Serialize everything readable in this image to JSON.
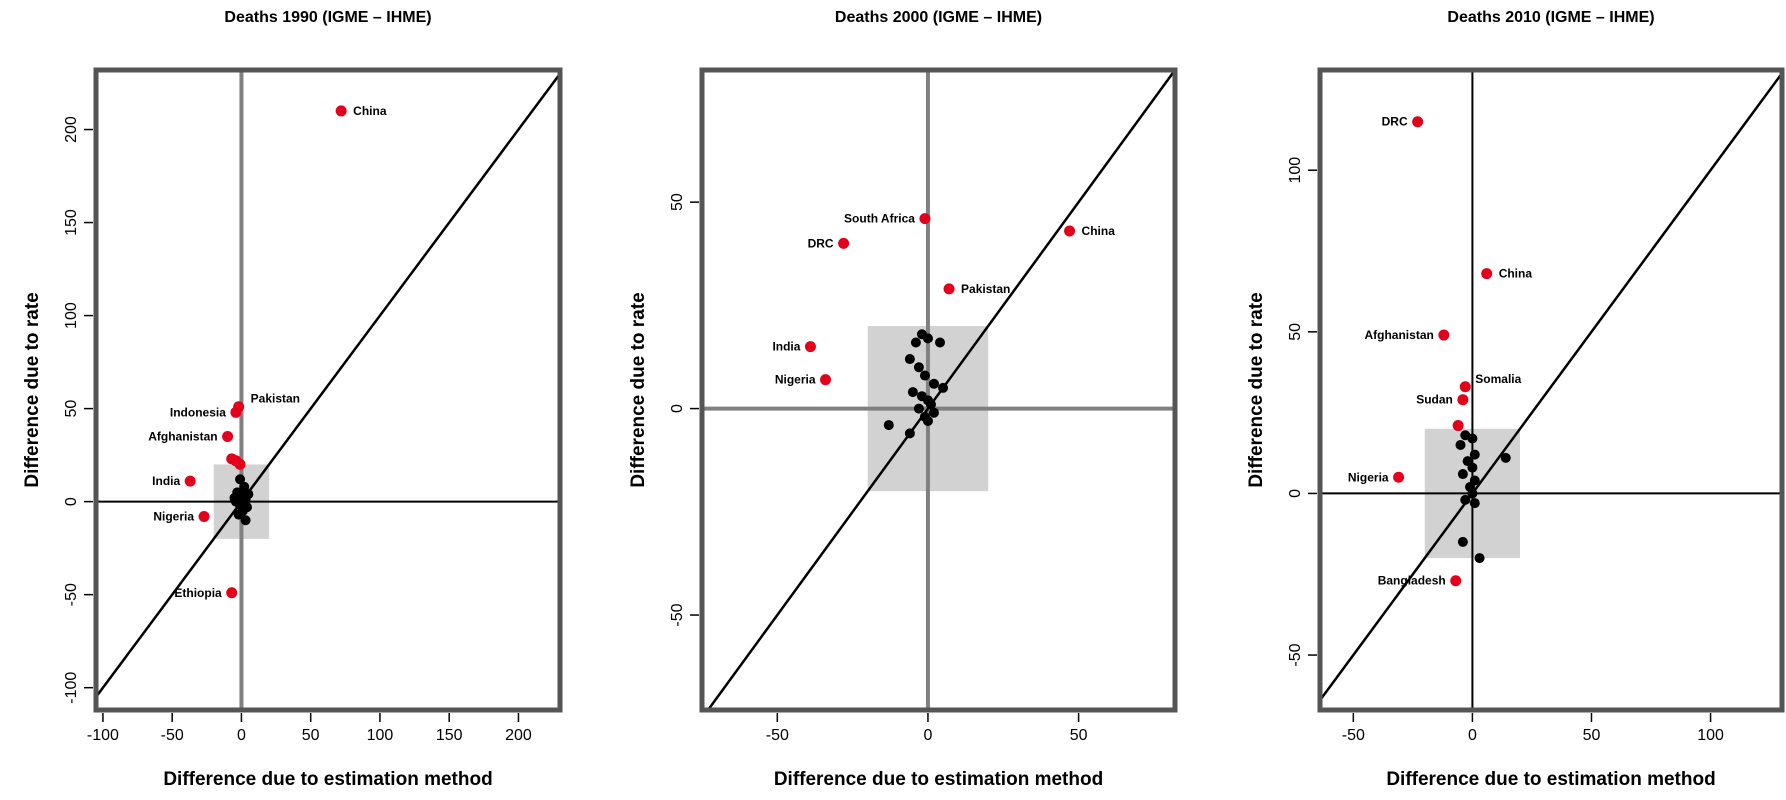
{
  "chart_data": [
    {
      "type": "scatter",
      "title": "Deaths 1990 (IGME – IHME)",
      "xlabel": "Difference due to estimation method",
      "ylabel": "Difference due to rate",
      "xlim": [
        -105,
        230
      ],
      "ylim": [
        -112,
        232
      ],
      "xticks": [
        -100,
        -50,
        0,
        50,
        100,
        150,
        200
      ],
      "yticks": [
        -100,
        -50,
        0,
        50,
        100,
        150,
        200
      ],
      "box": 20,
      "highlighted": [
        {
          "label": "China",
          "x": 72,
          "y": 210
        },
        {
          "label": "Pakistan",
          "x": -2,
          "y": 51
        },
        {
          "label": "Indonesia",
          "x": -4,
          "y": 48
        },
        {
          "label": "Afghanistan",
          "x": -10,
          "y": 35
        },
        {
          "label": "",
          "x": -7,
          "y": 23
        },
        {
          "label": "",
          "x": -4,
          "y": 22
        },
        {
          "label": "",
          "x": -1,
          "y": 20
        },
        {
          "label": "India",
          "x": -37,
          "y": 11
        },
        {
          "label": "Nigeria",
          "x": -27,
          "y": -8
        },
        {
          "label": "Ethiopia",
          "x": -7,
          "y": -49
        }
      ],
      "points": [
        {
          "x": -1,
          "y": 12
        },
        {
          "x": 2,
          "y": 8
        },
        {
          "x": -3,
          "y": 5
        },
        {
          "x": 1,
          "y": 3
        },
        {
          "x": -2,
          "y": 2
        },
        {
          "x": 3,
          "y": 1
        },
        {
          "x": -4,
          "y": 0
        },
        {
          "x": 0,
          "y": 0
        },
        {
          "x": 2,
          "y": -1
        },
        {
          "x": -1,
          "y": -2
        },
        {
          "x": 4,
          "y": -3
        },
        {
          "x": 1,
          "y": -5
        },
        {
          "x": -2,
          "y": -7
        },
        {
          "x": 3,
          "y": -10
        },
        {
          "x": 5,
          "y": 4
        },
        {
          "x": -5,
          "y": 2
        }
      ]
    },
    {
      "type": "scatter",
      "title": "Deaths 2000 (IGME – IHME)",
      "xlabel": "Difference due to estimation method",
      "ylabel": "Difference due to rate",
      "xlim": [
        -75,
        82
      ],
      "ylim": [
        -73,
        82
      ],
      "xticks": [
        -50,
        0,
        50
      ],
      "yticks": [
        -50,
        0,
        50
      ],
      "box": 20,
      "highlighted": [
        {
          "label": "South Africa",
          "x": -1,
          "y": 46
        },
        {
          "label": "DRC",
          "x": -28,
          "y": 40
        },
        {
          "label": "China",
          "x": 47,
          "y": 43
        },
        {
          "label": "Pakistan",
          "x": 7,
          "y": 29
        },
        {
          "label": "India",
          "x": -39,
          "y": 15
        },
        {
          "label": "Nigeria",
          "x": -34,
          "y": 7
        }
      ],
      "points": [
        {
          "x": -4,
          "y": 16
        },
        {
          "x": -2,
          "y": 18
        },
        {
          "x": 0,
          "y": 17
        },
        {
          "x": 4,
          "y": 16
        },
        {
          "x": -6,
          "y": 12
        },
        {
          "x": -3,
          "y": 10
        },
        {
          "x": -1,
          "y": 8
        },
        {
          "x": 2,
          "y": 6
        },
        {
          "x": 5,
          "y": 5
        },
        {
          "x": -5,
          "y": 4
        },
        {
          "x": -2,
          "y": 3
        },
        {
          "x": 0,
          "y": 2
        },
        {
          "x": 1,
          "y": 1
        },
        {
          "x": -3,
          "y": 0
        },
        {
          "x": 2,
          "y": -1
        },
        {
          "x": -1,
          "y": -2
        },
        {
          "x": -13,
          "y": -4
        },
        {
          "x": -6,
          "y": -6
        },
        {
          "x": 0,
          "y": -3
        }
      ]
    },
    {
      "type": "scatter",
      "title": "Deaths 2010 (IGME – IHME)",
      "xlabel": "Difference due to estimation method",
      "ylabel": "Difference due to rate",
      "xlim": [
        -64,
        130
      ],
      "ylim": [
        -67,
        131
      ],
      "xticks": [
        -50,
        0,
        50,
        100
      ],
      "yticks": [
        -50,
        0,
        50,
        100
      ],
      "box": 20,
      "highlighted": [
        {
          "label": "DRC",
          "x": -23,
          "y": 115
        },
        {
          "label": "China",
          "x": 6,
          "y": 68
        },
        {
          "label": "Afghanistan",
          "x": -12,
          "y": 49
        },
        {
          "label": "Somalia",
          "x": -3,
          "y": 33
        },
        {
          "label": "Sudan",
          "x": -4,
          "y": 29
        },
        {
          "label": "",
          "x": -6,
          "y": 21
        },
        {
          "label": "Nigeria",
          "x": -31,
          "y": 5
        },
        {
          "label": "Bangladesh",
          "x": -7,
          "y": -27
        }
      ],
      "points": [
        {
          "x": -3,
          "y": 18
        },
        {
          "x": 0,
          "y": 17
        },
        {
          "x": -5,
          "y": 15
        },
        {
          "x": 1,
          "y": 12
        },
        {
          "x": -2,
          "y": 10
        },
        {
          "x": 0,
          "y": 8
        },
        {
          "x": -4,
          "y": 6
        },
        {
          "x": 1,
          "y": 4
        },
        {
          "x": -1,
          "y": 2
        },
        {
          "x": 0,
          "y": 0
        },
        {
          "x": -3,
          "y": -2
        },
        {
          "x": 1,
          "y": -3
        },
        {
          "x": 14,
          "y": 11
        },
        {
          "x": -4,
          "y": -15
        },
        {
          "x": 3,
          "y": -20
        }
      ]
    }
  ]
}
